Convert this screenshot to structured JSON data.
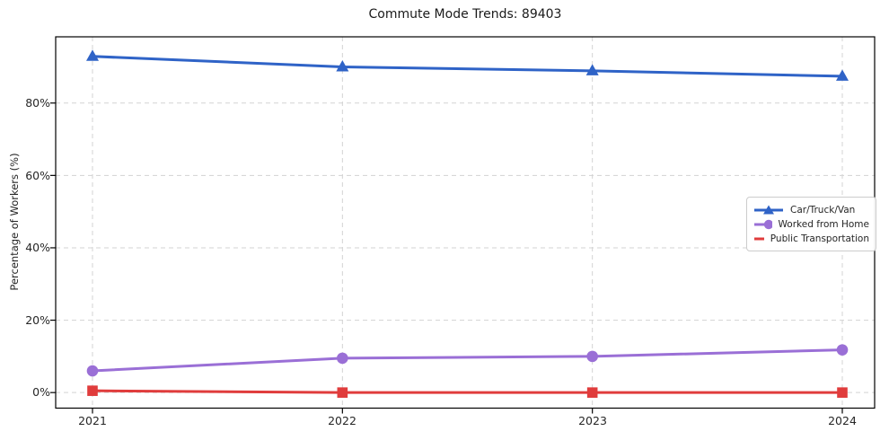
{
  "title": "Commute Mode Trends: 89403",
  "chart_data": {
    "type": "line",
    "title": "Commute Mode Trends: 89403",
    "categories": [
      "2021",
      "2022",
      "2023",
      "2024"
    ],
    "series": [
      {
        "name": "Car/Truck/Van",
        "marker": "triangle",
        "color": "#2f63c7",
        "values": [
          92.9,
          90.0,
          88.9,
          87.4
        ]
      },
      {
        "name": "Worked from Home",
        "marker": "circle",
        "color": "#9a6fd6",
        "values": [
          6.0,
          9.5,
          10.0,
          11.8
        ]
      },
      {
        "name": "Public Transportation",
        "marker": "square",
        "color": "#e03c3c",
        "values": [
          0.5,
          0.0,
          0.0,
          0.0
        ]
      }
    ],
    "xlabel": "",
    "ylabel": "Percentage of Workers (%)",
    "yticks": [
      0,
      20,
      40,
      60,
      80
    ],
    "ytick_labels": [
      "0%",
      "20%",
      "40%",
      "60%",
      "80%"
    ],
    "ylim": [
      -4.3,
      98.3
    ],
    "grid": true,
    "grid_style": "dashed",
    "legend_position": "center right",
    "colors": {
      "grid": "#d3d3d3",
      "axis": "#000000",
      "text": "#262626",
      "background": "#ffffff"
    }
  }
}
